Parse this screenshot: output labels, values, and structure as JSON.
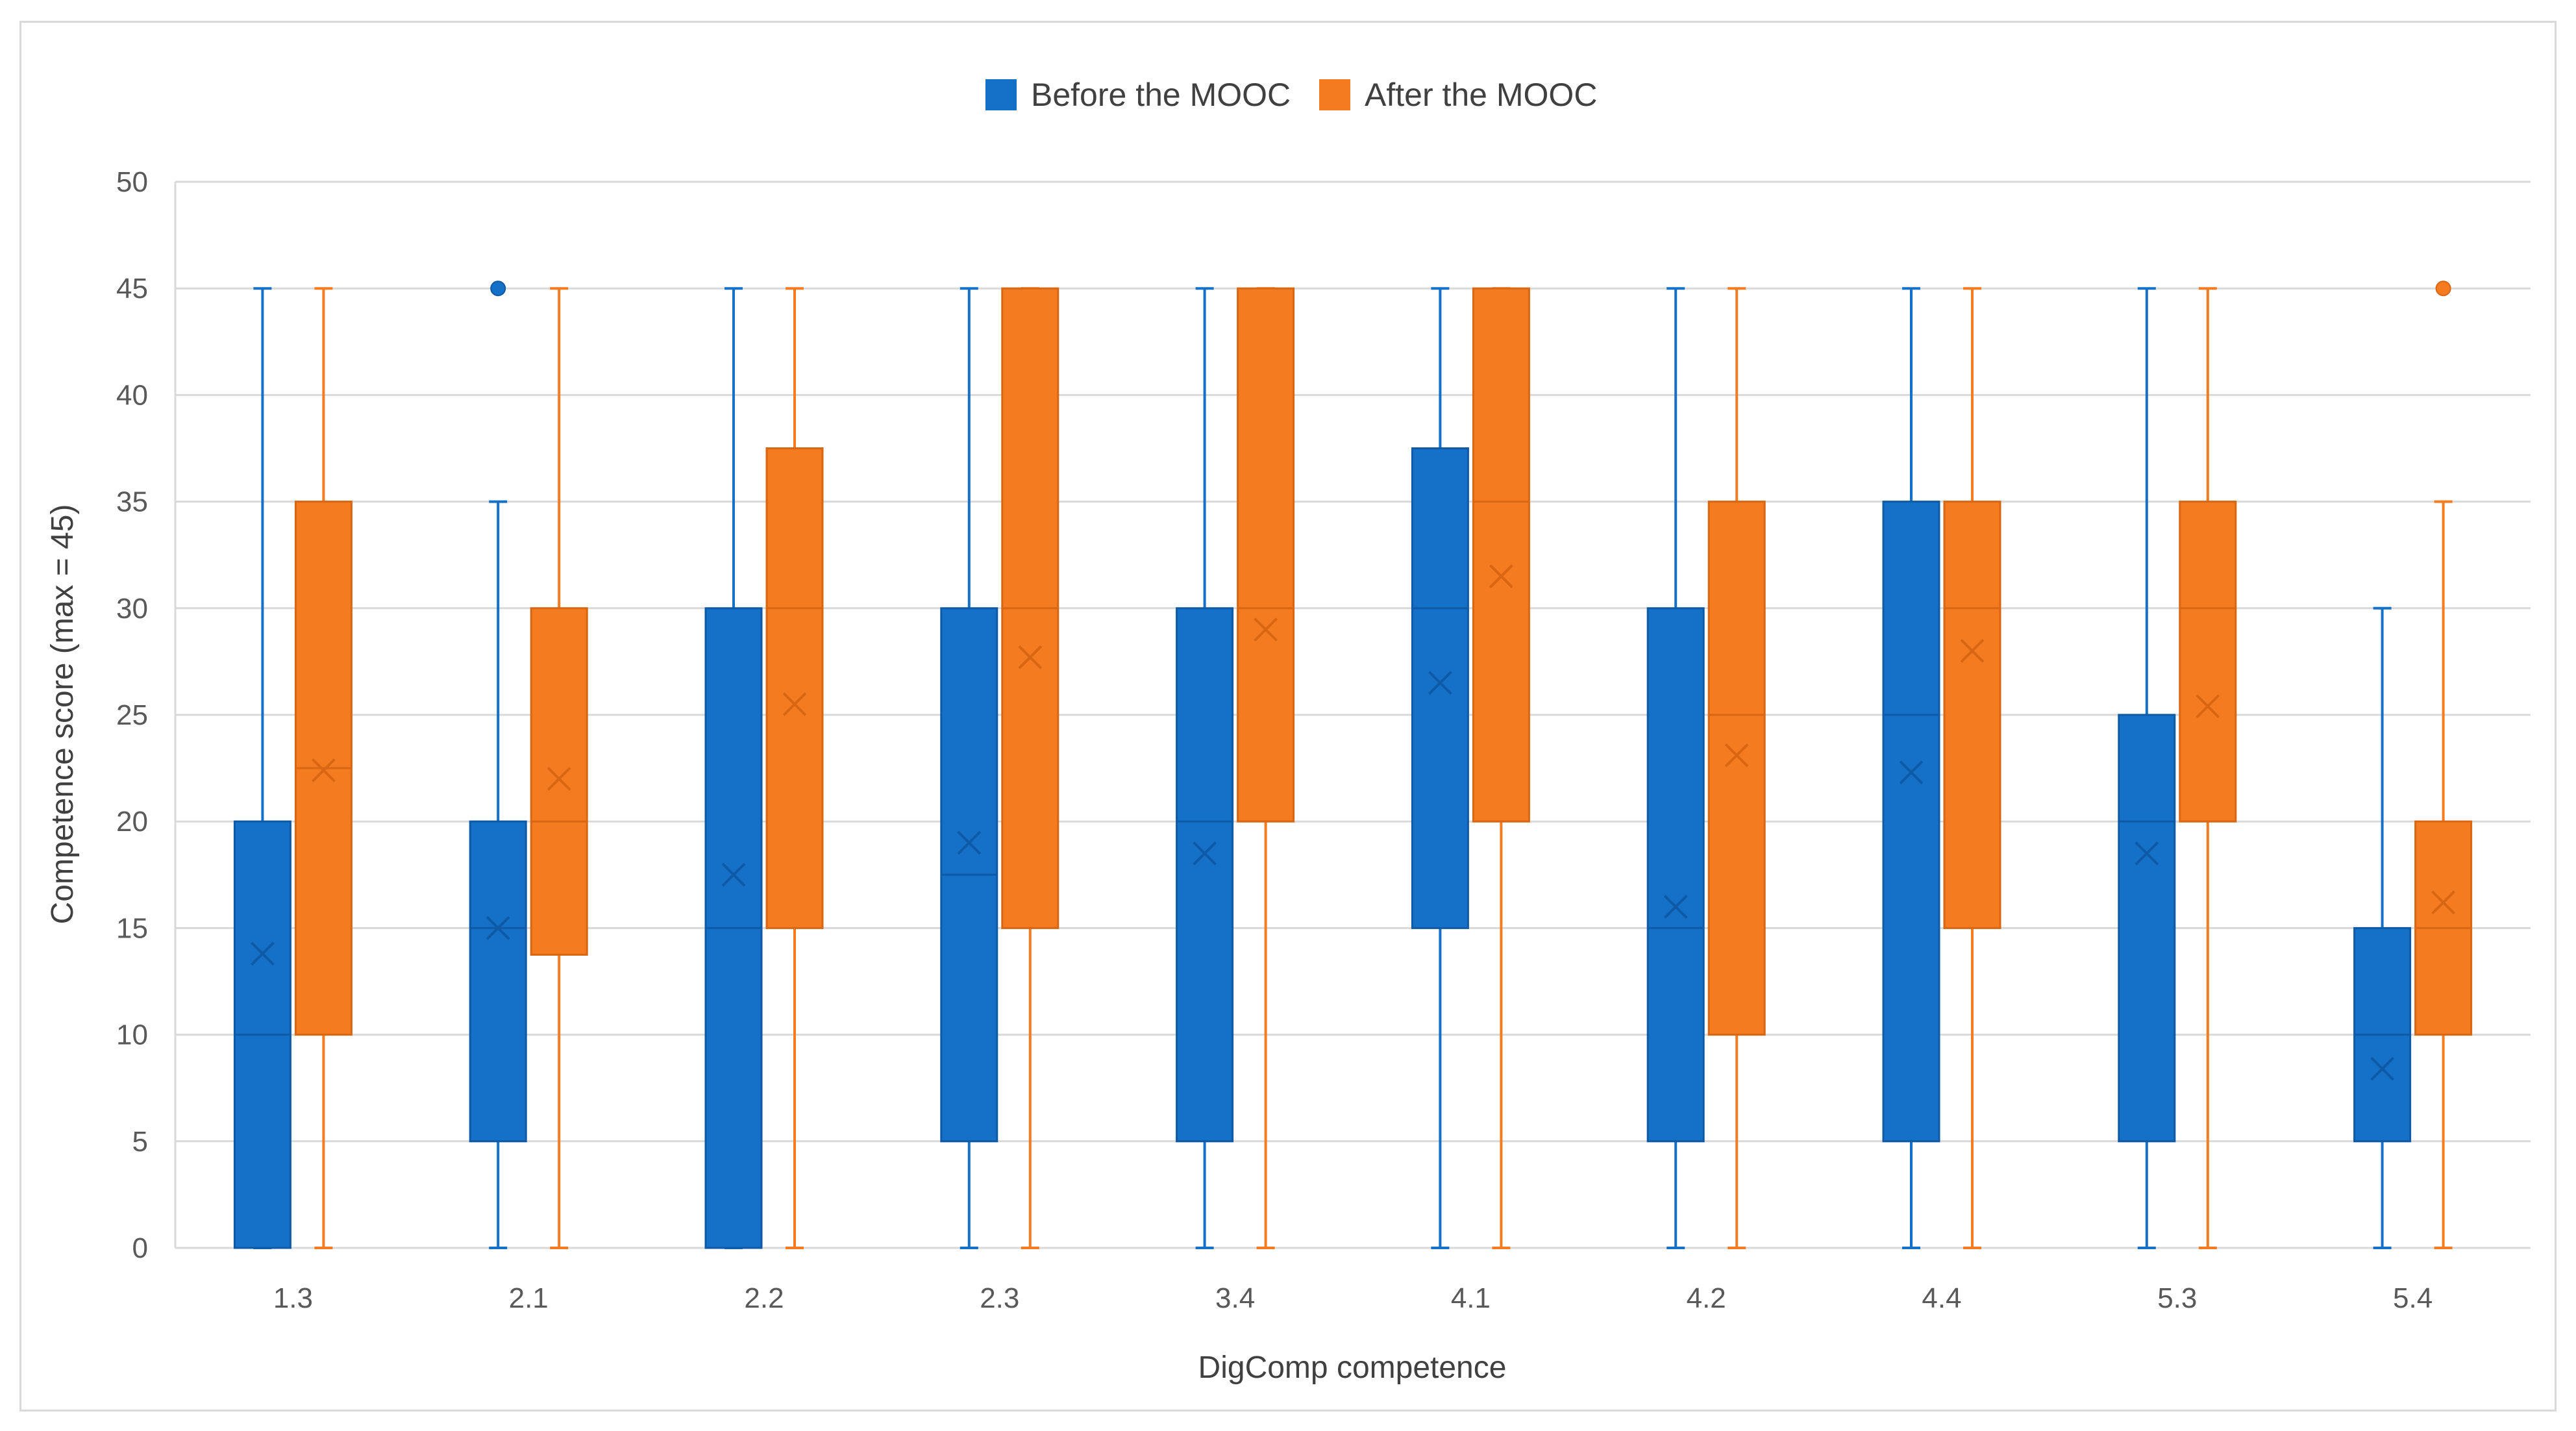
{
  "chart_data": {
    "type": "box",
    "xlabel": "DigComp competence",
    "ylabel": "Competence score (max = 45)",
    "ylim": [
      0,
      50
    ],
    "yticks": [
      0,
      5,
      10,
      15,
      20,
      25,
      30,
      35,
      40,
      45,
      50
    ],
    "grid": true,
    "legend_position": "top-center",
    "categories": [
      "1.3",
      "2.1",
      "2.2",
      "2.3",
      "3.4",
      "4.1",
      "4.2",
      "4.4",
      "5.3",
      "5.4"
    ],
    "series": [
      {
        "name": "Before the MOOC",
        "color": "#1570c8",
        "boxes": [
          {
            "min": 0,
            "q1": 0,
            "median": 10,
            "q3": 20,
            "max": 45,
            "mean": 13.8,
            "outliers": []
          },
          {
            "min": 0,
            "q1": 5,
            "median": 15,
            "q3": 20,
            "max": 35,
            "mean": 15,
            "outliers": [
              45
            ]
          },
          {
            "min": 0,
            "q1": 0,
            "median": 15,
            "q3": 30,
            "max": 45,
            "mean": 17.5,
            "outliers": []
          },
          {
            "min": 0,
            "q1": 5,
            "median": 17.5,
            "q3": 30,
            "max": 45,
            "mean": 19,
            "outliers": []
          },
          {
            "min": 0,
            "q1": 5,
            "median": 20,
            "q3": 30,
            "max": 45,
            "mean": 18.5,
            "outliers": []
          },
          {
            "min": 0,
            "q1": 15,
            "median": 30,
            "q3": 37.5,
            "max": 45,
            "mean": 26.5,
            "outliers": []
          },
          {
            "min": 0,
            "q1": 5,
            "median": 15,
            "q3": 30,
            "max": 45,
            "mean": 16,
            "outliers": []
          },
          {
            "min": 0,
            "q1": 5,
            "median": 25,
            "q3": 35,
            "max": 45,
            "mean": 22.3,
            "outliers": []
          },
          {
            "min": 0,
            "q1": 5,
            "median": 20,
            "q3": 25,
            "max": 45,
            "mean": 18.5,
            "outliers": []
          },
          {
            "min": 0,
            "q1": 5,
            "median": 10,
            "q3": 15,
            "max": 30,
            "mean": 8.4,
            "outliers": []
          }
        ]
      },
      {
        "name": "After the MOOC",
        "color": "#f47b20",
        "boxes": [
          {
            "min": 0,
            "q1": 10,
            "median": 22.5,
            "q3": 35,
            "max": 45,
            "mean": 22.4,
            "outliers": []
          },
          {
            "min": 0,
            "q1": 13.75,
            "median": 20,
            "q3": 30,
            "max": 45,
            "mean": 22,
            "outliers": []
          },
          {
            "min": 0,
            "q1": 15,
            "median": 30,
            "q3": 37.5,
            "max": 45,
            "mean": 25.5,
            "outliers": []
          },
          {
            "min": 0,
            "q1": 15,
            "median": 30,
            "q3": 45,
            "max": 45,
            "mean": 27.7,
            "outliers": []
          },
          {
            "min": 0,
            "q1": 20,
            "median": 30,
            "q3": 45,
            "max": 45,
            "mean": 29,
            "outliers": []
          },
          {
            "min": 0,
            "q1": 20,
            "median": 35,
            "q3": 45,
            "max": 45,
            "mean": 31.5,
            "outliers": []
          },
          {
            "min": 0,
            "q1": 10,
            "median": 25,
            "q3": 35,
            "max": 45,
            "mean": 23.1,
            "outliers": []
          },
          {
            "min": 0,
            "q1": 15,
            "median": 30,
            "q3": 35,
            "max": 45,
            "mean": 28,
            "outliers": []
          },
          {
            "min": 0,
            "q1": 20,
            "median": 30,
            "q3": 35,
            "max": 45,
            "mean": 25.4,
            "outliers": []
          },
          {
            "min": 0,
            "q1": 10,
            "median": 15,
            "q3": 20,
            "max": 35,
            "mean": 16.2,
            "outliers": [
              45
            ]
          }
        ]
      }
    ]
  },
  "colors": {
    "before": "#1570c8",
    "before_dark": "#0f5aa6",
    "after": "#f47b20",
    "after_dark": "#d86612",
    "grid": "#d9d9d9",
    "frame": "#d9d9d9"
  }
}
